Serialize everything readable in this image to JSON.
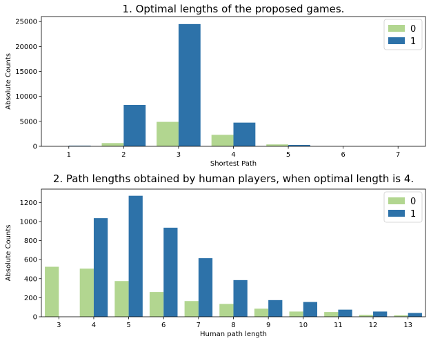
{
  "chart_data": [
    {
      "type": "bar",
      "title": "1. Optimal lengths of the proposed games.",
      "xlabel": "Shortest Path",
      "ylabel": "Absolute Counts",
      "categories": [
        "1",
        "2",
        "3",
        "4",
        "5",
        "6",
        "7"
      ],
      "ylim": [
        0,
        26000
      ],
      "yticks": [
        0,
        5000,
        10000,
        15000,
        20000,
        25000
      ],
      "legend_position": "top-right",
      "series": [
        {
          "name": "0",
          "color": "#b2d690",
          "values": [
            0,
            650,
            4900,
            2300,
            380,
            0,
            0
          ]
        },
        {
          "name": "1",
          "color": "#2d72a9",
          "values": [
            130,
            8300,
            24500,
            4750,
            280,
            0,
            0
          ]
        }
      ]
    },
    {
      "type": "bar",
      "title": "2. Path lengths obtained by human players, when optimal length is 4.",
      "xlabel": "Human path length",
      "ylabel": "Absolute Counts",
      "categories": [
        "3",
        "4",
        "5",
        "6",
        "7",
        "8",
        "9",
        "10",
        "11",
        "12",
        "13"
      ],
      "ylim": [
        0,
        1340
      ],
      "yticks": [
        0,
        200,
        400,
        600,
        800,
        1000,
        1200
      ],
      "legend_position": "top-right",
      "series": [
        {
          "name": "0",
          "color": "#b2d690",
          "values": [
            525,
            505,
            375,
            260,
            165,
            135,
            85,
            55,
            50,
            20,
            15
          ]
        },
        {
          "name": "1",
          "color": "#2d72a9",
          "values": [
            0,
            1035,
            1270,
            935,
            615,
            385,
            175,
            155,
            75,
            55,
            40
          ]
        }
      ]
    }
  ]
}
